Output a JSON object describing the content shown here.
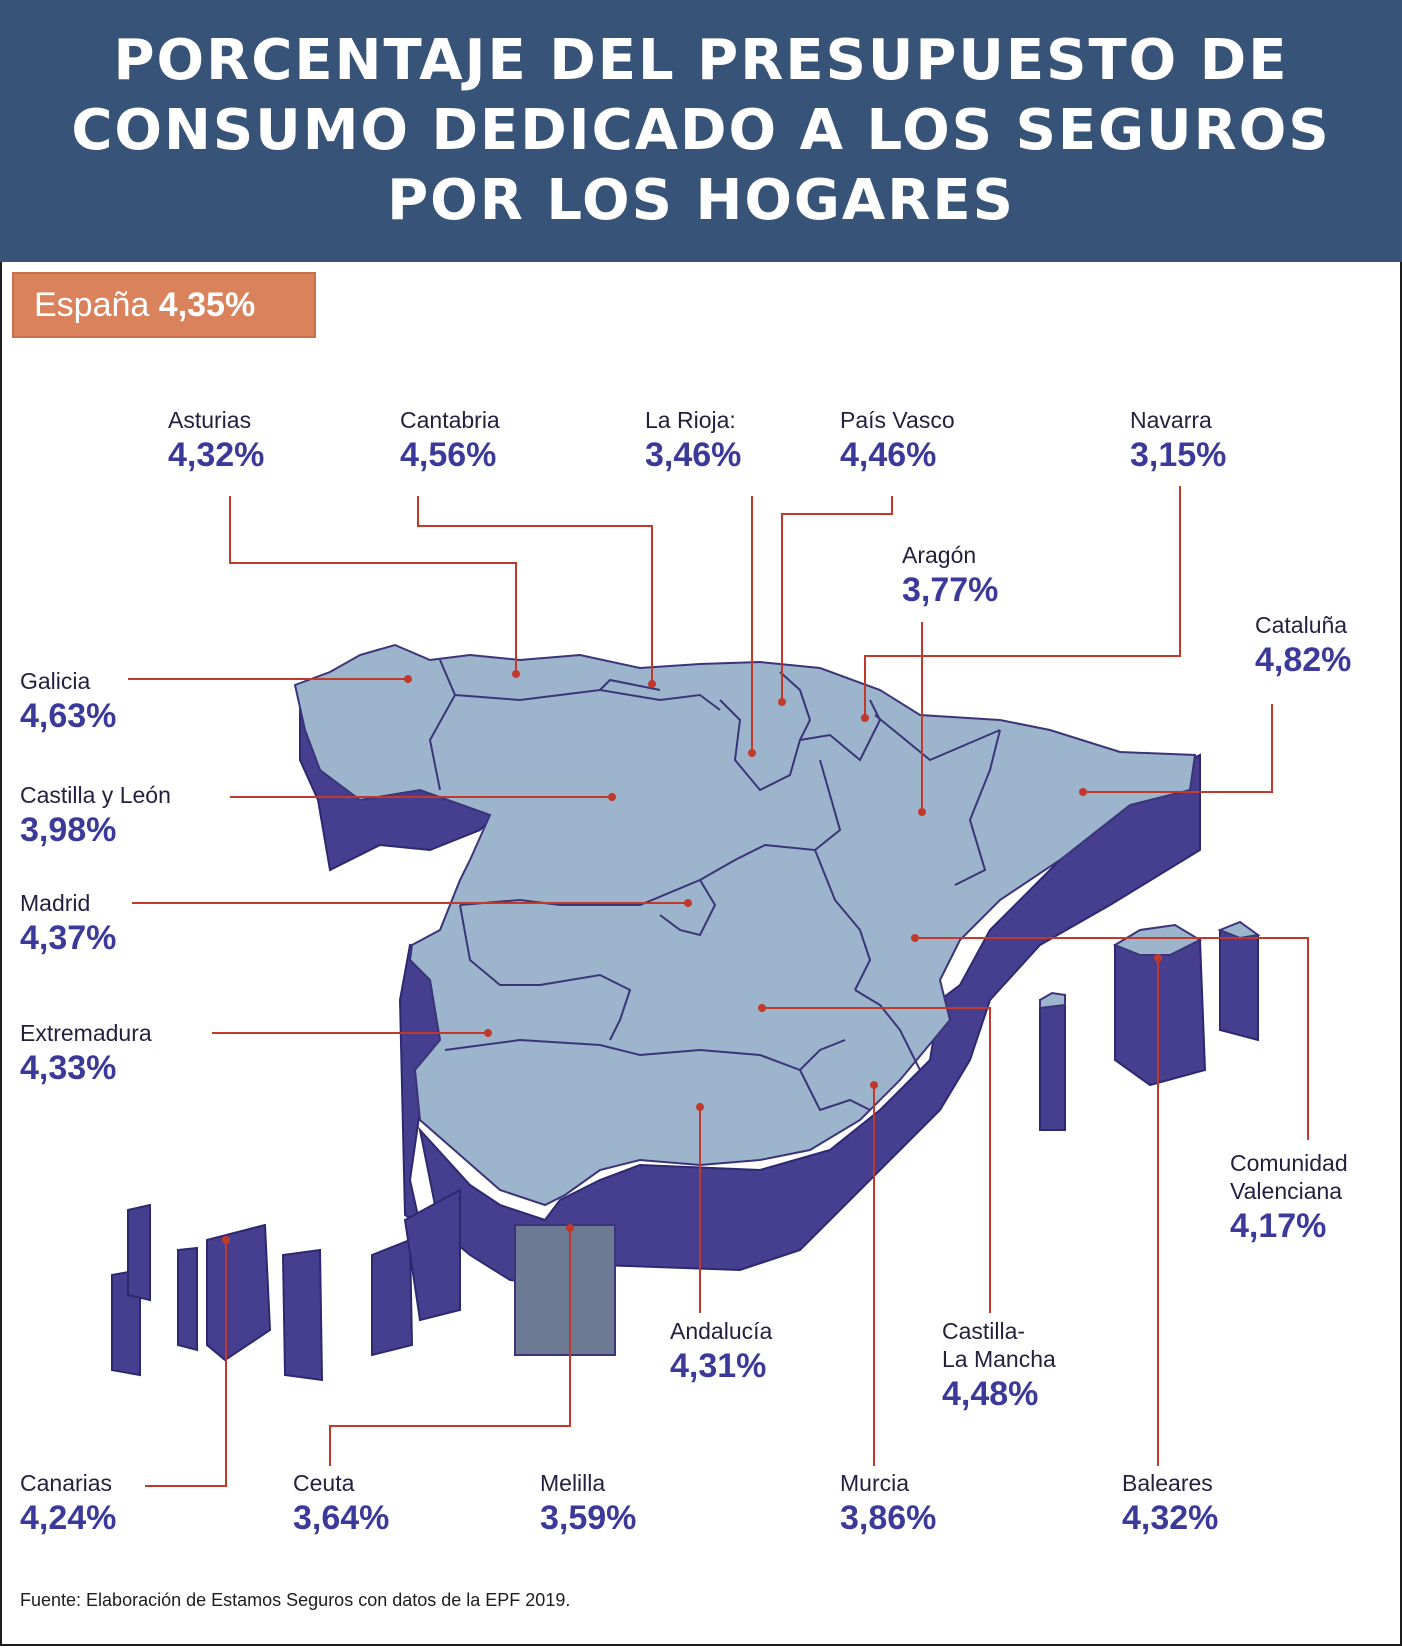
{
  "header": {
    "title": "PORCENTAJE DEL PRESUPUESTO DE CONSUMO DEDICADO A LOS SEGUROS POR LOS HOGARES"
  },
  "badge": {
    "country": "España",
    "value": "4,35%"
  },
  "colors": {
    "header_bg": "#375478",
    "badge_bg": "#d9825b",
    "map_top": "#9db4cd",
    "map_side": "#463f8f",
    "leader": "#c0392b",
    "value_text": "#3b3a9a"
  },
  "regions": {
    "asturias": {
      "name": "Asturias",
      "value": "4,32%"
    },
    "cantabria": {
      "name": "Cantabria",
      "value": "4,56%"
    },
    "la_rioja": {
      "name": "La Rioja:",
      "value": "3,46%"
    },
    "pais_vasco": {
      "name": "País Vasco",
      "value": "4,46%"
    },
    "navarra": {
      "name": "Navarra",
      "value": "3,15%"
    },
    "aragon": {
      "name": "Aragón",
      "value": "3,77%"
    },
    "cataluna": {
      "name": "Cataluña",
      "value": "4,82%"
    },
    "galicia": {
      "name": "Galicia",
      "value": "4,63%"
    },
    "castilla_leon": {
      "name": "Castilla y León",
      "value": "3,98%"
    },
    "madrid": {
      "name": "Madrid",
      "value": "4,37%"
    },
    "extremadura": {
      "name": "Extremadura",
      "value": "4,33%"
    },
    "comunidad_valenciana": {
      "name": "Comunidad\nValenciana",
      "value": "4,17%"
    },
    "andalucia": {
      "name": "Andalucía",
      "value": "4,31%"
    },
    "castilla_la_mancha": {
      "name": "Castilla-\nLa Mancha",
      "value": "4,48%"
    },
    "canarias": {
      "name": "Canarias",
      "value": "4,24%"
    },
    "ceuta": {
      "name": "Ceuta",
      "value": "3,64%"
    },
    "melilla": {
      "name": "Melilla",
      "value": "3,59%"
    },
    "murcia": {
      "name": "Murcia",
      "value": "3,86%"
    },
    "baleares": {
      "name": "Baleares",
      "value": "4,32%"
    }
  },
  "source": "Fuente: Elaboración de Estamos Seguros con datos de la EPF 2019."
}
